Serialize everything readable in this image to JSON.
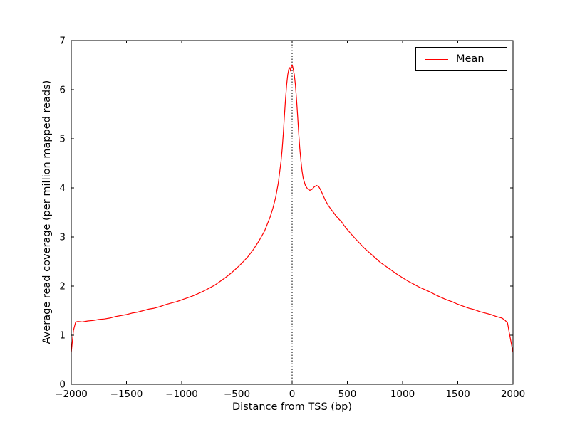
{
  "chart_data": {
    "type": "line",
    "title": "",
    "xlabel": "Distance from TSS (bp)",
    "ylabel": "Average read coverage (per million mapped reads)",
    "xlim": [
      -2000,
      2000
    ],
    "ylim": [
      0,
      7
    ],
    "grid": false,
    "xticks": [
      {
        "value": -2000,
        "label": "−2000"
      },
      {
        "value": -1500,
        "label": "−1500"
      },
      {
        "value": -1000,
        "label": "−1000"
      },
      {
        "value": -500,
        "label": "−500"
      },
      {
        "value": 0,
        "label": "0"
      },
      {
        "value": 500,
        "label": "500"
      },
      {
        "value": 1000,
        "label": "1000"
      },
      {
        "value": 1500,
        "label": "1500"
      },
      {
        "value": 2000,
        "label": "2000"
      }
    ],
    "yticks": [
      {
        "value": 0,
        "label": "0"
      },
      {
        "value": 1,
        "label": "1"
      },
      {
        "value": 2,
        "label": "2"
      },
      {
        "value": 3,
        "label": "3"
      },
      {
        "value": 4,
        "label": "4"
      },
      {
        "value": 5,
        "label": "5"
      },
      {
        "value": 6,
        "label": "6"
      },
      {
        "value": 7,
        "label": "7"
      }
    ],
    "legend": {
      "position": "upper right",
      "entries": [
        {
          "label": "Mean",
          "color": "#ff0000"
        }
      ]
    },
    "vline": {
      "x": 0,
      "style": "dotted",
      "color": "#000000"
    },
    "series": [
      {
        "name": "Mean",
        "color": "#ff0000",
        "x": [
          -2000,
          -1980,
          -1960,
          -1940,
          -1900,
          -1850,
          -1800,
          -1750,
          -1700,
          -1650,
          -1600,
          -1550,
          -1500,
          -1450,
          -1400,
          -1350,
          -1300,
          -1250,
          -1200,
          -1150,
          -1100,
          -1050,
          -1000,
          -950,
          -900,
          -850,
          -800,
          -750,
          -700,
          -650,
          -600,
          -550,
          -500,
          -450,
          -400,
          -350,
          -300,
          -250,
          -200,
          -175,
          -150,
          -125,
          -100,
          -90,
          -80,
          -70,
          -60,
          -50,
          -40,
          -30,
          -20,
          -15,
          -10,
          -5,
          0,
          5,
          10,
          20,
          30,
          40,
          50,
          60,
          70,
          80,
          90,
          100,
          120,
          140,
          160,
          180,
          200,
          220,
          240,
          260,
          280,
          300,
          325,
          350,
          375,
          400,
          425,
          450,
          475,
          500,
          550,
          600,
          650,
          700,
          750,
          800,
          850,
          900,
          950,
          1000,
          1050,
          1100,
          1150,
          1200,
          1250,
          1300,
          1350,
          1400,
          1450,
          1500,
          1550,
          1600,
          1650,
          1700,
          1750,
          1800,
          1850,
          1900,
          1930,
          1950,
          1970,
          2000
        ],
        "y": [
          0.65,
          1.1,
          1.27,
          1.28,
          1.27,
          1.29,
          1.3,
          1.32,
          1.33,
          1.35,
          1.38,
          1.4,
          1.42,
          1.45,
          1.47,
          1.5,
          1.53,
          1.55,
          1.58,
          1.62,
          1.65,
          1.68,
          1.72,
          1.76,
          1.8,
          1.85,
          1.9,
          1.96,
          2.02,
          2.1,
          2.18,
          2.27,
          2.37,
          2.48,
          2.6,
          2.75,
          2.92,
          3.12,
          3.4,
          3.58,
          3.8,
          4.1,
          4.55,
          4.8,
          5.1,
          5.45,
          5.8,
          6.1,
          6.3,
          6.42,
          6.45,
          6.38,
          6.42,
          6.48,
          6.5,
          6.47,
          6.42,
          6.3,
          6.1,
          5.8,
          5.45,
          5.1,
          4.8,
          4.55,
          4.35,
          4.2,
          4.05,
          3.98,
          3.95,
          3.97,
          4.02,
          4.05,
          4.03,
          3.95,
          3.85,
          3.75,
          3.65,
          3.57,
          3.5,
          3.42,
          3.36,
          3.3,
          3.22,
          3.15,
          3.02,
          2.9,
          2.78,
          2.68,
          2.58,
          2.48,
          2.4,
          2.32,
          2.24,
          2.17,
          2.1,
          2.04,
          1.98,
          1.93,
          1.88,
          1.82,
          1.77,
          1.72,
          1.68,
          1.63,
          1.59,
          1.55,
          1.52,
          1.48,
          1.45,
          1.42,
          1.38,
          1.35,
          1.3,
          1.25,
          1.0,
          0.65
        ]
      }
    ]
  }
}
